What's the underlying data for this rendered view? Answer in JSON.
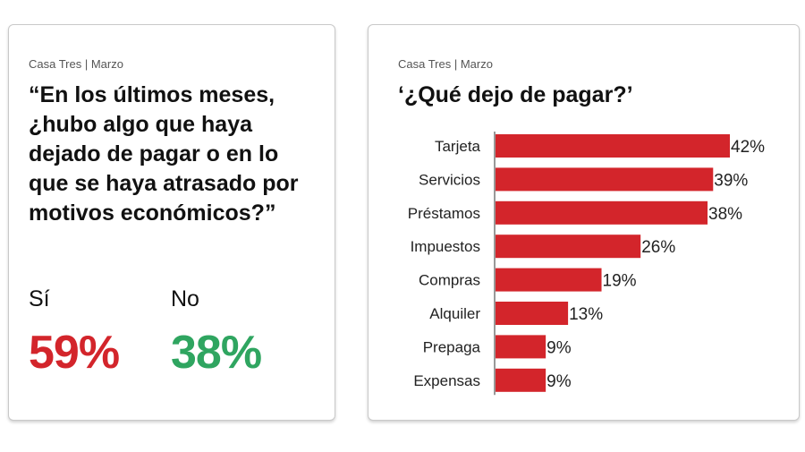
{
  "left_card": {
    "source": "Casa Tres | Marzo",
    "question": "“En los últimos meses, ¿hubo algo que haya dejado de pagar o en lo que se haya atrasado por motivos económicos?”",
    "yes_label": "Sí",
    "yes_value": "59%",
    "no_label": "No",
    "no_value": "38%"
  },
  "right_card": {
    "source": "Casa Tres | Marzo"
  },
  "colors": {
    "yes": "#d3252b",
    "no": "#2fa560",
    "bar": "#d3252b"
  },
  "chart_data": {
    "type": "bar",
    "orientation": "horizontal",
    "title": "‘¿Qué dejo de pagar?’",
    "categories": [
      "Tarjeta",
      "Servicios",
      "Préstamos",
      "Impuestos",
      "Compras",
      "Alquiler",
      "Prepaga",
      "Expensas"
    ],
    "values": [
      42,
      39,
      38,
      26,
      19,
      13,
      9,
      9
    ],
    "value_labels": [
      "42%",
      "39%",
      "38%",
      "26%",
      "19%",
      "13%",
      "9%",
      "9%"
    ],
    "xlim": [
      0,
      42
    ],
    "grid": false
  }
}
